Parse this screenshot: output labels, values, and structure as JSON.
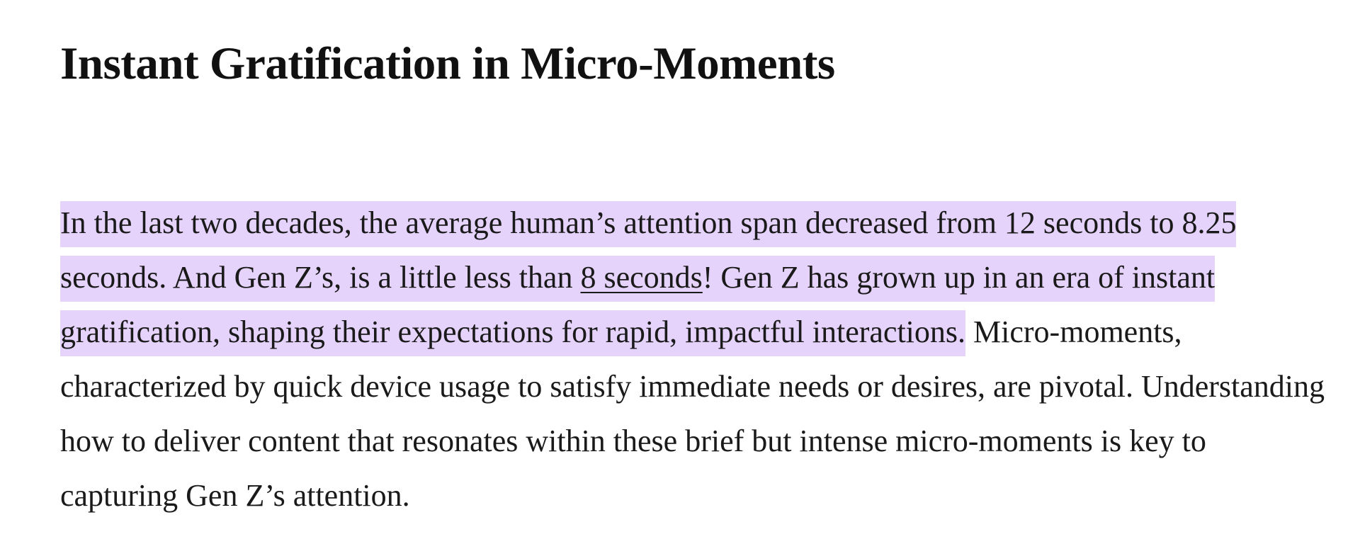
{
  "heading": "Instant Gratification in Micro-Moments",
  "paragraph": {
    "highlighted_before_link": "In the last two decades, the average human’s attention span decreased from 12 seconds to 8.25 seconds. And Gen Z’s, is a little less than ",
    "link_text": "8 seconds",
    "highlighted_after_link": "! Gen Z has grown up in an era of instant gratification, shaping their expectations for rapid, impactful interactions.",
    "rest": " Micro-moments, characterized by quick device usage to satisfy immediate needs or desires, are pivotal. Understanding how to deliver content that resonates within these brief but intense micro-moments is key to capturing Gen Z’s attention."
  },
  "colors": {
    "highlight": "#e6d3fc",
    "text": "#1a1a1a"
  }
}
